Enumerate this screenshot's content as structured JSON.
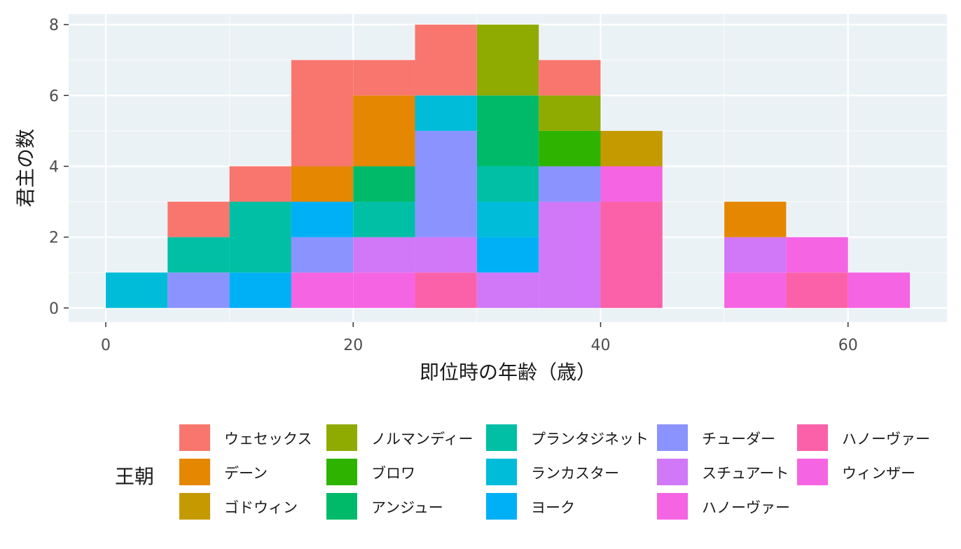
{
  "chart_data": {
    "type": "bar",
    "subtype": "stacked-histogram",
    "title": "",
    "xlabel": "即位時の年齢（歳）",
    "ylabel": "君主の数",
    "xlim": [
      -3,
      68
    ],
    "ylim": [
      -0.4,
      8.3
    ],
    "xticks": [
      0,
      20,
      40,
      60
    ],
    "yticks": [
      0,
      2,
      4,
      6,
      8
    ],
    "bin_width": 5,
    "grid": true,
    "legend_position": "bottom",
    "legend_title": "王朝",
    "series": [
      {
        "name": "ウェセックス",
        "color": "#F8766D"
      },
      {
        "name": "デーン",
        "color": "#E58700"
      },
      {
        "name": "ゴドウィン",
        "color": "#C99800"
      },
      {
        "name": "ノルマンディー",
        "color": "#A3A500"
      },
      {
        "name": "ブロワ",
        "color": "#6BB100"
      },
      {
        "name": "アンジュー",
        "color": "#00BA38"
      },
      {
        "name": "プランタジネット",
        "color": "#00BF7D"
      },
      {
        "name": "ランカスター",
        "color": "#00C0AF"
      },
      {
        "name": "ヨーク",
        "color": "#00BCD8"
      },
      {
        "name": "チューダー",
        "color": "#00B0F6"
      },
      {
        "name": "スチュアート",
        "color": "#619CFF"
      },
      {
        "name": "ハノーヴァー",
        "color": "#B983FF"
      },
      {
        "name": "ハノーヴァー",
        "color": "#E76BF3"
      },
      {
        "name": "ウィンザー",
        "color": "#FD61D1"
      }
    ],
    "segments": [
      {
        "x0": 0,
        "y0": 0,
        "y1": 1,
        "color": "#00BCD8"
      },
      {
        "x0": 5,
        "y0": 0,
        "y1": 1,
        "color": "#8B93FF"
      },
      {
        "x0": 5,
        "y0": 1,
        "y1": 2,
        "color": "#00BFA5"
      },
      {
        "x0": 5,
        "y0": 2,
        "y1": 3,
        "color": "#F8766D"
      },
      {
        "x0": 10,
        "y0": 0,
        "y1": 1,
        "color": "#00B0F6"
      },
      {
        "x0": 10,
        "y0": 1,
        "y1": 3,
        "color": "#00BFA5"
      },
      {
        "x0": 10,
        "y0": 3,
        "y1": 4,
        "color": "#F8766D"
      },
      {
        "x0": 15,
        "y0": 0,
        "y1": 1,
        "color": "#F564E3"
      },
      {
        "x0": 15,
        "y0": 1,
        "y1": 2,
        "color": "#8B93FF"
      },
      {
        "x0": 15,
        "y0": 2,
        "y1": 3,
        "color": "#00B0F6"
      },
      {
        "x0": 15,
        "y0": 3,
        "y1": 4,
        "color": "#E58700"
      },
      {
        "x0": 15,
        "y0": 4,
        "y1": 7,
        "color": "#F8766D"
      },
      {
        "x0": 20,
        "y0": 0,
        "y1": 1,
        "color": "#F564E3"
      },
      {
        "x0": 20,
        "y0": 1,
        "y1": 2,
        "color": "#D078F8"
      },
      {
        "x0": 20,
        "y0": 2,
        "y1": 3,
        "color": "#00BFA5"
      },
      {
        "x0": 20,
        "y0": 3,
        "y1": 4,
        "color": "#00BA6A"
      },
      {
        "x0": 20,
        "y0": 4,
        "y1": 6,
        "color": "#E58700"
      },
      {
        "x0": 20,
        "y0": 6,
        "y1": 7,
        "color": "#F8766D"
      },
      {
        "x0": 25,
        "y0": 0,
        "y1": 1,
        "color": "#FB61A8"
      },
      {
        "x0": 25,
        "y0": 1,
        "y1": 2,
        "color": "#D078F8"
      },
      {
        "x0": 25,
        "y0": 2,
        "y1": 5,
        "color": "#8B93FF"
      },
      {
        "x0": 25,
        "y0": 5,
        "y1": 6,
        "color": "#00BCD8"
      },
      {
        "x0": 25,
        "y0": 6,
        "y1": 8,
        "color": "#F8766D"
      },
      {
        "x0": 30,
        "y0": 0,
        "y1": 1,
        "color": "#D078F8"
      },
      {
        "x0": 30,
        "y0": 1,
        "y1": 2,
        "color": "#00B0F6"
      },
      {
        "x0": 30,
        "y0": 2,
        "y1": 3,
        "color": "#00BCD8"
      },
      {
        "x0": 30,
        "y0": 3,
        "y1": 4,
        "color": "#00BFA5"
      },
      {
        "x0": 30,
        "y0": 4,
        "y1": 6,
        "color": "#00BA6A"
      },
      {
        "x0": 30,
        "y0": 6,
        "y1": 8,
        "color": "#8FAA00"
      },
      {
        "x0": 35,
        "y0": 0,
        "y1": 3,
        "color": "#D078F8"
      },
      {
        "x0": 35,
        "y0": 3,
        "y1": 4,
        "color": "#8B93FF"
      },
      {
        "x0": 35,
        "y0": 4,
        "y1": 5,
        "color": "#2DB300"
      },
      {
        "x0": 35,
        "y0": 5,
        "y1": 6,
        "color": "#8FAA00"
      },
      {
        "x0": 35,
        "y0": 6,
        "y1": 7,
        "color": "#F8766D"
      },
      {
        "x0": 40,
        "y0": 0,
        "y1": 3,
        "color": "#FB61A8"
      },
      {
        "x0": 40,
        "y0": 3,
        "y1": 4,
        "color": "#F564E3"
      },
      {
        "x0": 40,
        "y0": 4,
        "y1": 5,
        "color": "#C49A00"
      },
      {
        "x0": 50,
        "y0": 0,
        "y1": 1,
        "color": "#F564E3"
      },
      {
        "x0": 50,
        "y0": 1,
        "y1": 2,
        "color": "#D078F8"
      },
      {
        "x0": 50,
        "y0": 2,
        "y1": 3,
        "color": "#E58700"
      },
      {
        "x0": 55,
        "y0": 0,
        "y1": 1,
        "color": "#FB61A8"
      },
      {
        "x0": 55,
        "y0": 1,
        "y1": 2,
        "color": "#F564E3"
      },
      {
        "x0": 60,
        "y0": 0,
        "y1": 1,
        "color": "#F564E3"
      }
    ]
  },
  "legend_items": [
    {
      "label": "ウェセックス",
      "color": "#F8766D"
    },
    {
      "label": "デーン",
      "color": "#E58700"
    },
    {
      "label": "ゴドウィン",
      "color": "#C49A00"
    },
    {
      "label": "ノルマンディー",
      "color": "#8FAA00"
    },
    {
      "label": "ブロワ",
      "color": "#2DB300"
    },
    {
      "label": "アンジュー",
      "color": "#00BA6A"
    },
    {
      "label": "プランタジネット",
      "color": "#00BFA5"
    },
    {
      "label": "ランカスター",
      "color": "#00BCD8"
    },
    {
      "label": "ヨーク",
      "color": "#00B0F6"
    },
    {
      "label": "チューダー",
      "color": "#8B93FF"
    },
    {
      "label": "スチュアート",
      "color": "#D078F8"
    },
    {
      "label": "ハノーヴァー",
      "color": "#F564E3"
    },
    {
      "label": "ハノーヴァー",
      "color": "#FB61A8"
    },
    {
      "label": "ウィンザー",
      "color": "#F564E3"
    }
  ],
  "colors": {
    "panel_background": "#EBF2F6",
    "grid_major": "#FFFFFF",
    "tick_text": "#4d4d4d",
    "title_text": "#1a1a1a"
  }
}
